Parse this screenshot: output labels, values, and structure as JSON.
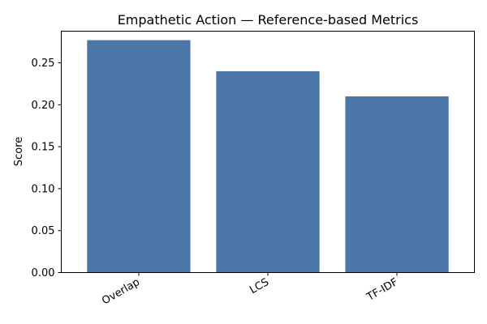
{
  "chart_data": {
    "type": "bar",
    "title": "Empathetic Action — Reference-based Metrics",
    "xlabel": "",
    "ylabel": "Score",
    "categories": [
      "Overlap",
      "LCS",
      "TF-IDF"
    ],
    "values": [
      0.277,
      0.24,
      0.21
    ],
    "ylim": [
      0,
      0.2877
    ],
    "yticks": [
      0.0,
      0.05,
      0.1,
      0.15,
      0.2,
      0.25
    ],
    "ytick_labels": [
      "0.00",
      "0.05",
      "0.10",
      "0.15",
      "0.20",
      "0.25"
    ],
    "bar_color": "#4a77a8",
    "grid": false,
    "legend": "none"
  }
}
